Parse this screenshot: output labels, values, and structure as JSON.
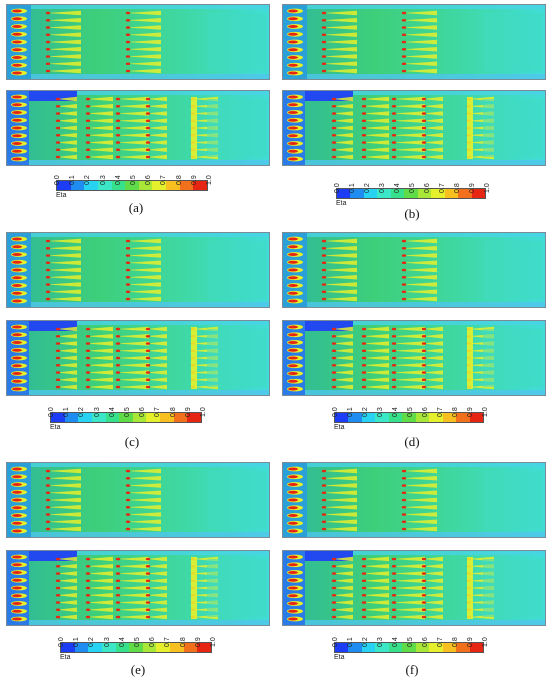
{
  "colormap": {
    "quantity_label": "Eta",
    "ticks": [
      "0.0",
      "0.1",
      "0.2",
      "0.3",
      "0.4",
      "0.5",
      "0.6",
      "0.7",
      "0.8",
      "0.9",
      "1.0"
    ],
    "colors": [
      "#1c3cf5",
      "#1e8cf0",
      "#27d2f2",
      "#3ce7c8",
      "#37e08a",
      "#5fdc48",
      "#a8e637",
      "#e6ef2b",
      "#f7c020",
      "#f2701c",
      "#e62612"
    ]
  },
  "panels": [
    {
      "id": "a",
      "label": "(a)"
    },
    {
      "id": "b",
      "label": "(b)"
    },
    {
      "id": "c",
      "label": "(c)"
    },
    {
      "id": "d",
      "label": "(d)"
    },
    {
      "id": "e",
      "label": "(e)"
    },
    {
      "id": "f",
      "label": "(f)"
    }
  ]
}
